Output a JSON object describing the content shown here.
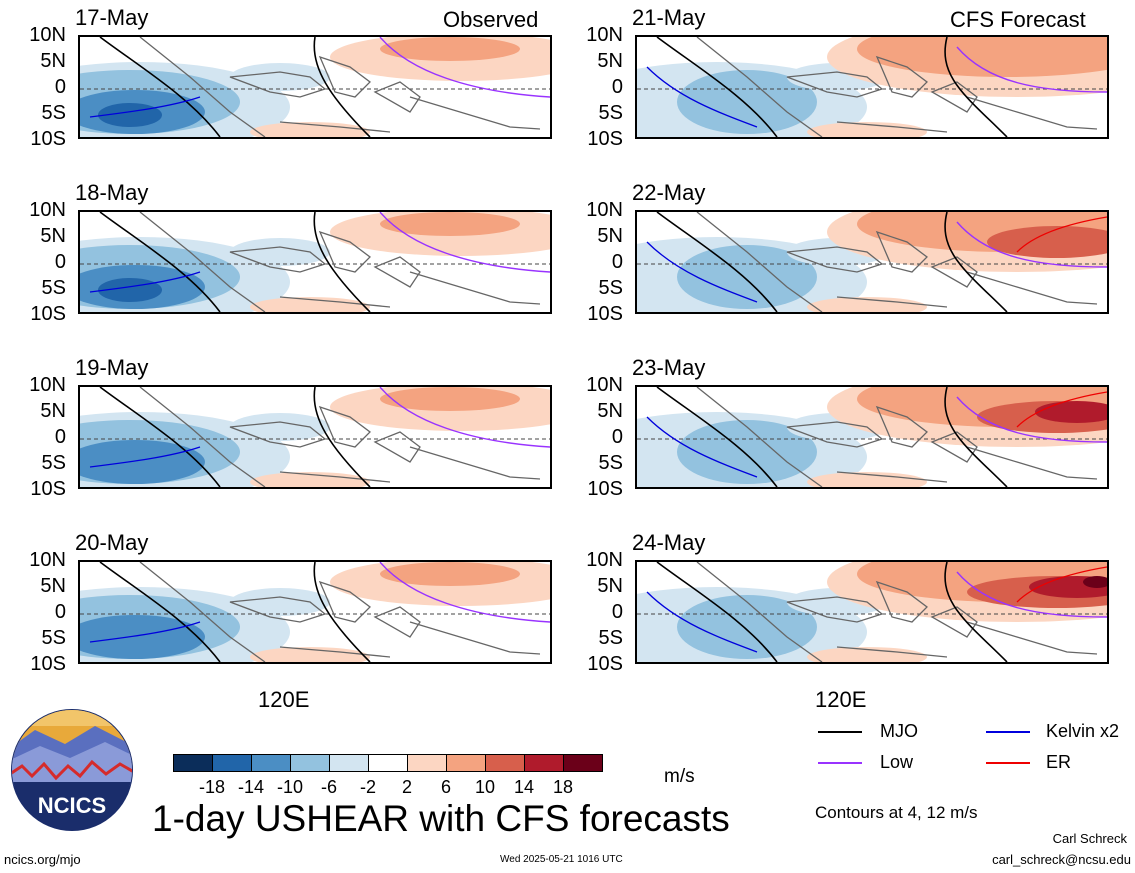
{
  "headers": {
    "left": "Observed",
    "right": "CFS Forecast"
  },
  "lat_labels": [
    "10N",
    "5N",
    "0",
    "5S",
    "10S"
  ],
  "lon_label": "120E",
  "panels": [
    {
      "date": "17-May"
    },
    {
      "date": "18-May"
    },
    {
      "date": "19-May"
    },
    {
      "date": "20-May"
    },
    {
      "date": "21-May"
    },
    {
      "date": "22-May"
    },
    {
      "date": "23-May"
    },
    {
      "date": "24-May"
    }
  ],
  "colorbar": {
    "ticks": [
      "-18",
      "-14",
      "-10",
      "-6",
      "-2",
      "2",
      "6",
      "10",
      "14",
      "18"
    ],
    "colors": [
      "#0b2d5a",
      "#2165a9",
      "#4b8ec4",
      "#93c2df",
      "#d3e5f1",
      "#ffffff",
      "#fcd6c2",
      "#f4a380",
      "#d75f4c",
      "#b01b2c",
      "#6b0019"
    ],
    "unit": "m/s"
  },
  "legend": {
    "mjo": {
      "label": "MJO",
      "color": "#000000"
    },
    "kelvin": {
      "label": "Kelvin x2",
      "color": "#0000dd"
    },
    "low": {
      "label": "Low",
      "color": "#9933ff"
    },
    "er": {
      "label": "ER",
      "color": "#ee0000"
    },
    "contours": "Contours at 4, 12 m/s"
  },
  "logo": {
    "text": "NCICS"
  },
  "title": "1-day USHEAR with CFS forecasts",
  "footer": {
    "url": "ncics.org/mjo",
    "timestamp": "Wed 2025-05-21 1016 UTC",
    "author": "Carl Schreck",
    "email": "carl_schreck@ncsu.edu"
  }
}
